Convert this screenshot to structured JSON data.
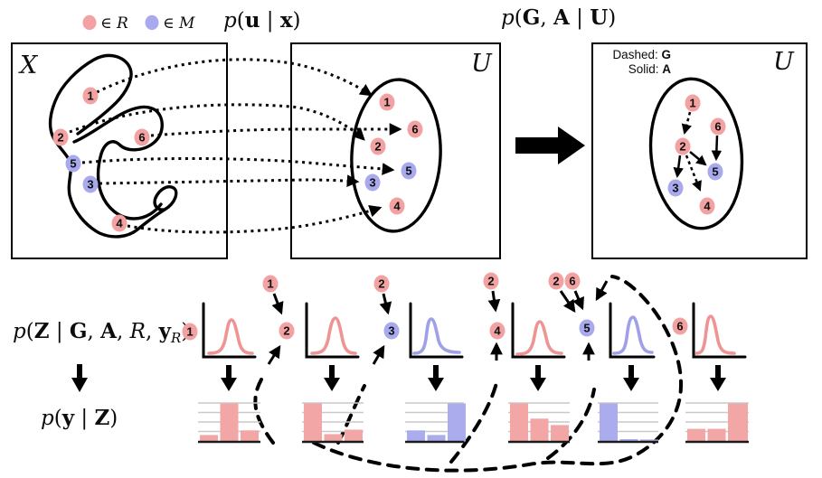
{
  "legend": {
    "in_r": "∈ R",
    "in_m": "∈ M"
  },
  "formulas": {
    "p_u_x": [
      "p",
      "(",
      "u",
      " | ",
      "x",
      ")"
    ],
    "p_ga_u": [
      "p",
      "(",
      "G",
      ", ",
      "A",
      " | ",
      "U",
      ")"
    ],
    "p_z": [
      "p",
      "(",
      "Z",
      " | ",
      "G",
      ", ",
      "A",
      ", ",
      "R",
      ", ",
      "y",
      "R",
      ")"
    ],
    "p_y": [
      "p",
      "(",
      "y",
      " | ",
      "Z",
      ")"
    ]
  },
  "set_R": [
    "1",
    "2",
    "4",
    "6"
  ],
  "set_M": [
    "3",
    "5"
  ],
  "panel_x": {
    "label": "X",
    "nodes": [
      "1",
      "2",
      "6",
      "5",
      "3",
      "4"
    ]
  },
  "panel_u": {
    "label": "U",
    "nodes": [
      "1",
      "6",
      "2",
      "5",
      "3",
      "4"
    ],
    "mappings": [
      "1→1",
      "2→2",
      "3→3",
      "4→4",
      "5→5",
      "6→6"
    ]
  },
  "panel_g": {
    "label": "U",
    "legend_line1": "Dashed: ",
    "legend_line1_bold": "G",
    "legend_line2": "Solid: ",
    "legend_line2_bold": "A",
    "nodes": [
      "1",
      "6",
      "2",
      "5",
      "3",
      "4"
    ],
    "edges": [
      {
        "from": "1",
        "to": "2",
        "type": "dashed"
      },
      {
        "from": "2",
        "to": "3",
        "type": "solid"
      },
      {
        "from": "2",
        "to": "5",
        "type": "solid"
      },
      {
        "from": "2",
        "to": "4",
        "type": "dashed"
      },
      {
        "from": "6",
        "to": "5",
        "type": "solid"
      }
    ]
  },
  "columns": [
    {
      "node": "1",
      "parents": [],
      "curve": "pink",
      "hist": [
        0.17,
        1.0,
        0.29
      ],
      "hist_color": "pink"
    },
    {
      "node": "2",
      "parents": [
        "1"
      ],
      "curve": "pink",
      "hist": [
        1.0,
        0.19,
        0.31
      ],
      "hist_color": "pink"
    },
    {
      "node": "3",
      "parents": [
        "2"
      ],
      "curve": "blue",
      "hist": [
        0.29,
        0.17,
        1.0
      ],
      "hist_color": "blue"
    },
    {
      "node": "4",
      "parents": [
        "2"
      ],
      "curve": "pink",
      "hist": [
        1.0,
        0.6,
        0.43
      ],
      "hist_color": "pink"
    },
    {
      "node": "5",
      "parents": [
        "2",
        "6"
      ],
      "curve": "blue",
      "hist": [
        1.0,
        0.06,
        0.05
      ],
      "hist_color": "blue"
    },
    {
      "node": "6",
      "parents": [],
      "curve": "pink",
      "hist": [
        0.33,
        0.33,
        1.0
      ],
      "hist_color": "pink"
    }
  ],
  "colors": {
    "pink_badge": "#f2a2a2",
    "blue_badge": "#a9aaee",
    "pink_line": "#ef9494",
    "blue_line": "#9fa0e8",
    "pink_bar": "#f2a6a6",
    "blue_bar": "#abacee",
    "grid": "#c9c9c9",
    "ink": "#000000"
  }
}
